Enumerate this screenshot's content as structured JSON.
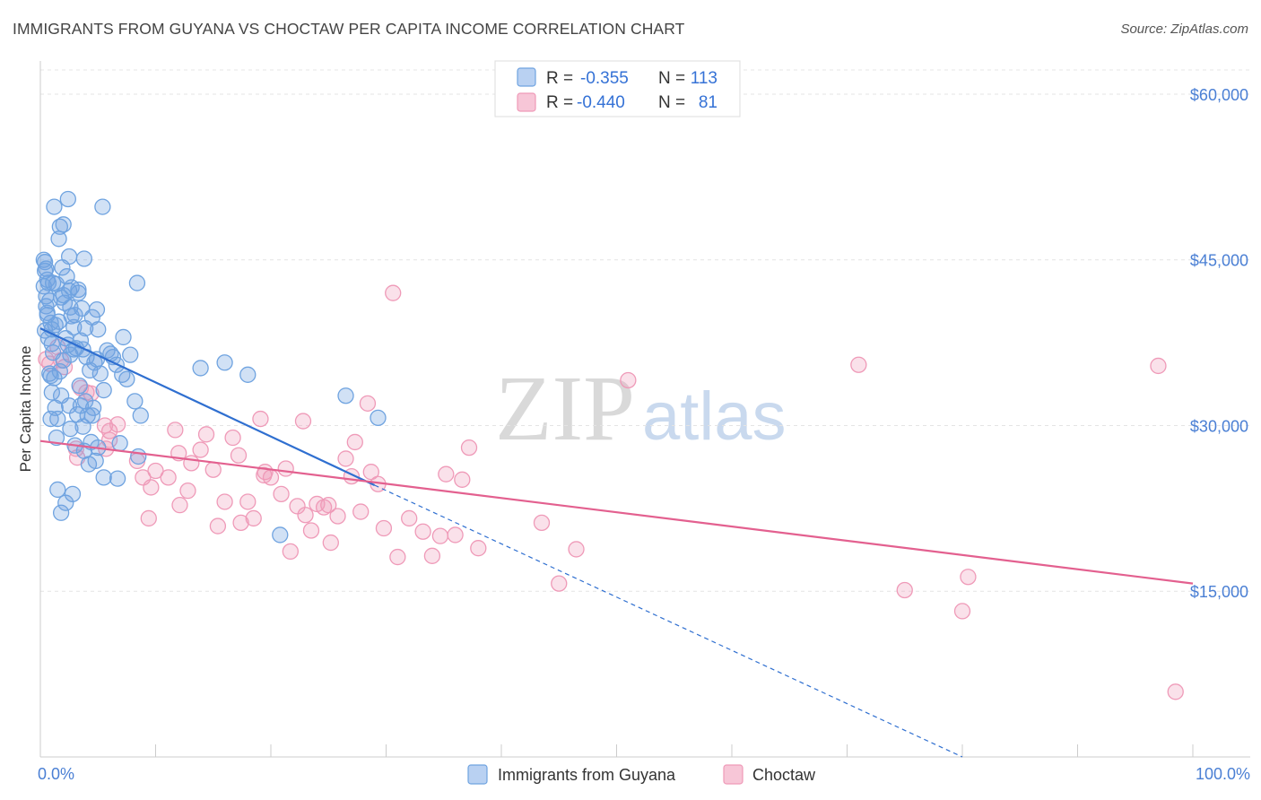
{
  "header": {
    "title": "IMMIGRANTS FROM GUYANA VS CHOCTAW PER CAPITA INCOME CORRELATION CHART",
    "source": "Source: ZipAtlas.com"
  },
  "legend": {
    "rows": [
      {
        "r_label": "R =",
        "r_value": "-0.355",
        "n_label": "N =",
        "n_value": "113"
      },
      {
        "r_label": "R =",
        "r_value": "-0.440",
        "n_label": "N =",
        "n_value": "81"
      }
    ]
  },
  "watermark": {
    "zip": "ZIP",
    "atlas": "atlas"
  },
  "colors": {
    "blue": "#6fa3e0",
    "blue_line": "#2f6fd0",
    "pink": "#ef9ab8",
    "pink_line": "#e3608f",
    "axis_label": "#4a7fd4"
  },
  "chart_data": {
    "type": "scatter",
    "title": "IMMIGRANTS FROM GUYANA VS CHOCTAW PER CAPITA INCOME CORRELATION CHART",
    "xlabel": "",
    "ylabel": "Per Capita Income",
    "xlim": [
      0,
      100
    ],
    "ylim": [
      0,
      63000
    ],
    "x_tick_labels": [
      "0.0%",
      "100.0%"
    ],
    "y_ticks": [
      15000,
      30000,
      45000,
      60000
    ],
    "y_tick_labels": [
      "$15,000",
      "$30,000",
      "$45,000",
      "$60,000"
    ],
    "grid": true,
    "legend_position": "top-center",
    "series": [
      {
        "name": "Immigrants from Guyana",
        "r": -0.355,
        "n": 113,
        "trend": {
          "x0": 0,
          "y0": 38800,
          "x1": 29,
          "y1": 24600,
          "dashed_to_x": 80,
          "dashed_to_y": 0
        },
        "points": [
          [
            0.3,
            45000
          ],
          [
            0.4,
            44800
          ],
          [
            0.5,
            44200
          ],
          [
            0.6,
            43200
          ],
          [
            0.7,
            42900
          ],
          [
            0.3,
            42600
          ],
          [
            0.8,
            41300
          ],
          [
            0.5,
            40800
          ],
          [
            0.6,
            40200
          ],
          [
            0.9,
            39300
          ],
          [
            0.4,
            38600
          ],
          [
            0.7,
            37900
          ],
          [
            1.0,
            37400
          ],
          [
            1.1,
            36600
          ],
          [
            0.8,
            34700
          ],
          [
            1.2,
            34300
          ],
          [
            1.0,
            33000
          ],
          [
            1.3,
            31600
          ],
          [
            0.9,
            30600
          ],
          [
            1.4,
            28900
          ],
          [
            1.5,
            24200
          ],
          [
            1.8,
            22100
          ],
          [
            2.2,
            23000
          ],
          [
            2.8,
            23800
          ],
          [
            1.2,
            49800
          ],
          [
            2.4,
            50500
          ],
          [
            1.7,
            48000
          ],
          [
            2.0,
            48200
          ],
          [
            1.6,
            46900
          ],
          [
            2.5,
            45300
          ],
          [
            3.8,
            45100
          ],
          [
            1.9,
            44300
          ],
          [
            2.3,
            43500
          ],
          [
            1.4,
            42800
          ],
          [
            2.7,
            42500
          ],
          [
            3.3,
            42000
          ],
          [
            1.8,
            41600
          ],
          [
            2.1,
            41100
          ],
          [
            2.6,
            40700
          ],
          [
            3.6,
            40600
          ],
          [
            4.9,
            40500
          ],
          [
            3.0,
            40000
          ],
          [
            4.5,
            39800
          ],
          [
            1.6,
            39400
          ],
          [
            2.9,
            38900
          ],
          [
            3.9,
            38800
          ],
          [
            5.0,
            38700
          ],
          [
            2.2,
            37900
          ],
          [
            3.5,
            37700
          ],
          [
            2.4,
            37300
          ],
          [
            3.1,
            37000
          ],
          [
            3.7,
            36900
          ],
          [
            5.8,
            36800
          ],
          [
            2.6,
            36400
          ],
          [
            4.0,
            36200
          ],
          [
            6.3,
            36200
          ],
          [
            7.8,
            36400
          ],
          [
            2.0,
            35900
          ],
          [
            4.7,
            35700
          ],
          [
            6.6,
            35500
          ],
          [
            4.3,
            35000
          ],
          [
            1.7,
            34900
          ],
          [
            5.2,
            34700
          ],
          [
            7.1,
            34600
          ],
          [
            7.5,
            34200
          ],
          [
            3.4,
            33600
          ],
          [
            5.5,
            33200
          ],
          [
            1.8,
            32700
          ],
          [
            3.9,
            32200
          ],
          [
            8.2,
            32200
          ],
          [
            2.5,
            31800
          ],
          [
            4.6,
            31600
          ],
          [
            3.2,
            31000
          ],
          [
            4.1,
            30900
          ],
          [
            8.7,
            30900
          ],
          [
            1.5,
            30600
          ],
          [
            3.7,
            29900
          ],
          [
            2.6,
            29700
          ],
          [
            4.4,
            28500
          ],
          [
            8.5,
            27200
          ],
          [
            3.8,
            27700
          ],
          [
            4.2,
            26500
          ],
          [
            5.5,
            25300
          ],
          [
            6.7,
            25200
          ],
          [
            4.8,
            26800
          ],
          [
            3.0,
            28200
          ],
          [
            5.0,
            28000
          ],
          [
            6.9,
            28400
          ],
          [
            5.4,
            49800
          ],
          [
            8.4,
            42900
          ],
          [
            2.5,
            42200
          ],
          [
            13.9,
            35200
          ],
          [
            16.0,
            35700
          ],
          [
            18.0,
            34600
          ],
          [
            26.5,
            32700
          ],
          [
            29.3,
            30700
          ],
          [
            20.8,
            20100
          ],
          [
            1.1,
            42900
          ],
          [
            0.6,
            40000
          ],
          [
            1.3,
            39100
          ],
          [
            0.9,
            34500
          ],
          [
            2.0,
            41800
          ],
          [
            3.3,
            42300
          ],
          [
            2.9,
            36900
          ],
          [
            4.9,
            36000
          ],
          [
            6.1,
            36500
          ],
          [
            7.2,
            38000
          ],
          [
            4.5,
            30900
          ],
          [
            3.5,
            31800
          ],
          [
            0.5,
            41700
          ],
          [
            1.0,
            38700
          ],
          [
            2.7,
            39900
          ],
          [
            0.4,
            44000
          ]
        ]
      },
      {
        "name": "Choctaw",
        "r": -0.44,
        "n": 81,
        "trend": {
          "x0": 0,
          "y0": 28600,
          "x1": 100,
          "y1": 15700
        },
        "points": [
          [
            0.5,
            36000
          ],
          [
            0.8,
            35600
          ],
          [
            1.5,
            37100
          ],
          [
            2.1,
            35300
          ],
          [
            1.8,
            35900
          ],
          [
            3.1,
            27900
          ],
          [
            3.5,
            33400
          ],
          [
            5.6,
            30000
          ],
          [
            4.4,
            32900
          ],
          [
            3.2,
            27100
          ],
          [
            6.0,
            28700
          ],
          [
            6.7,
            30100
          ],
          [
            5.7,
            27900
          ],
          [
            8.4,
            26800
          ],
          [
            8.9,
            25300
          ],
          [
            9.6,
            24400
          ],
          [
            9.4,
            21600
          ],
          [
            10.0,
            25900
          ],
          [
            11.1,
            25300
          ],
          [
            11.7,
            29600
          ],
          [
            12.1,
            22800
          ],
          [
            12.8,
            24100
          ],
          [
            13.1,
            26600
          ],
          [
            13.9,
            27800
          ],
          [
            14.4,
            29200
          ],
          [
            15.0,
            26000
          ],
          [
            15.4,
            20900
          ],
          [
            16.0,
            23100
          ],
          [
            16.7,
            28900
          ],
          [
            17.2,
            27300
          ],
          [
            17.4,
            21200
          ],
          [
            18.0,
            23100
          ],
          [
            18.5,
            21600
          ],
          [
            19.1,
            30600
          ],
          [
            19.4,
            25500
          ],
          [
            20.0,
            25300
          ],
          [
            20.9,
            23800
          ],
          [
            21.3,
            26100
          ],
          [
            21.7,
            18600
          ],
          [
            22.3,
            22700
          ],
          [
            22.8,
            30400
          ],
          [
            23.0,
            21900
          ],
          [
            23.5,
            20500
          ],
          [
            24.0,
            22900
          ],
          [
            24.6,
            22600
          ],
          [
            25.2,
            19400
          ],
          [
            25.8,
            21800
          ],
          [
            26.5,
            27000
          ],
          [
            27.0,
            25400
          ],
          [
            27.3,
            28500
          ],
          [
            27.8,
            22200
          ],
          [
            28.4,
            32000
          ],
          [
            29.3,
            24700
          ],
          [
            28.7,
            25800
          ],
          [
            29.8,
            20700
          ],
          [
            30.6,
            42000
          ],
          [
            31.0,
            18100
          ],
          [
            32.0,
            21600
          ],
          [
            33.2,
            20400
          ],
          [
            34.0,
            18200
          ],
          [
            34.7,
            20000
          ],
          [
            35.2,
            25600
          ],
          [
            36.0,
            20100
          ],
          [
            36.6,
            25100
          ],
          [
            37.2,
            28000
          ],
          [
            38.0,
            18900
          ],
          [
            43.5,
            21200
          ],
          [
            45.0,
            15700
          ],
          [
            46.5,
            18800
          ],
          [
            51.0,
            34100
          ],
          [
            71.0,
            35500
          ],
          [
            75.0,
            15100
          ],
          [
            80.5,
            16300
          ],
          [
            80.0,
            13200
          ],
          [
            97.0,
            35400
          ],
          [
            98.5,
            5900
          ],
          [
            6.0,
            29500
          ],
          [
            4.0,
            33000
          ],
          [
            12.0,
            27500
          ],
          [
            19.5,
            25800
          ],
          [
            25.0,
            22800
          ]
        ]
      }
    ]
  }
}
